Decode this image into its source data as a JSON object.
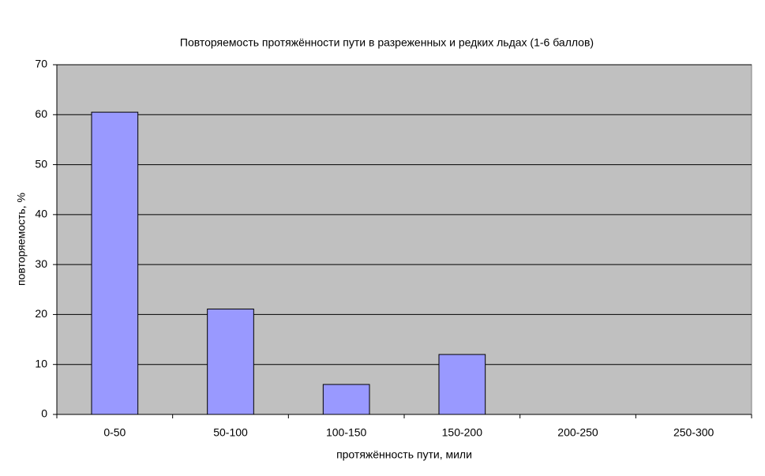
{
  "chart_data": {
    "type": "bar",
    "title": "Повторяемость протяжённости пути в разреженных и редких льдах (1-6 баллов)",
    "x_label": "протяжённость пути, мили",
    "y_label": "повторяемость, %",
    "categories": [
      "0-50",
      "50-100",
      "100-150",
      "150-200",
      "200-250",
      "250-300"
    ],
    "values": [
      60.5,
      21.1,
      6,
      12,
      0,
      0
    ],
    "color": "#9999ff",
    "ylim": [
      0,
      70
    ],
    "yticks": [
      0,
      10,
      20,
      30,
      40,
      50,
      60,
      70
    ],
    "grid": true
  }
}
